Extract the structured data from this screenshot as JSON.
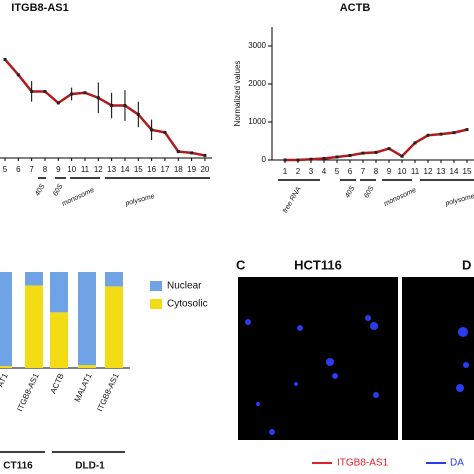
{
  "chart_data": [
    {
      "type": "line",
      "title": "ITGB8-AS1",
      "categories": [
        "5",
        "6",
        "7",
        "8",
        "9",
        "10",
        "11",
        "12",
        "13",
        "14",
        "15",
        "16",
        "17",
        "18",
        "19",
        "20"
      ],
      "values": [
        77,
        65,
        52,
        52,
        43,
        50,
        51,
        47,
        41,
        41,
        34,
        22,
        20,
        5,
        4,
        2
      ],
      "errors": [
        0,
        0,
        8,
        0,
        0,
        5,
        0,
        12,
        10,
        12,
        10,
        8,
        0,
        0,
        0,
        0
      ],
      "color": "#b01c1c",
      "ylim": [
        0,
        100
      ],
      "annotations": [
        "40S",
        "60S",
        "monosome",
        "polysome"
      ]
    },
    {
      "type": "line",
      "title": "ACTB",
      "y_label": "Normalized values",
      "categories": [
        "1",
        "2",
        "3",
        "4",
        "5",
        "6",
        "7",
        "8",
        "9",
        "10",
        "11",
        "12",
        "13",
        "14",
        "15"
      ],
      "values": [
        0,
        0,
        20,
        40,
        80,
        120,
        180,
        200,
        300,
        100,
        450,
        650,
        680,
        720,
        800
      ],
      "errors": [
        0,
        0,
        0,
        0,
        0,
        0,
        0,
        0,
        0,
        0,
        0,
        0,
        0,
        0,
        0
      ],
      "color": "#b01c1c",
      "ylim": [
        0,
        3500
      ],
      "yticks": [
        0,
        1000,
        2000,
        3000
      ],
      "annotations": [
        "free RNA",
        "40S",
        "60S",
        "monosome",
        "polysome"
      ]
    },
    {
      "type": "stacked_bar",
      "categories": [
        "AT1",
        "ITGB8-AS1",
        "ACTB",
        "MALAT1",
        "ITGB8-AS1"
      ],
      "groups": [
        "CT116",
        "DLD-1"
      ],
      "series": [
        {
          "name": "Nuclear",
          "color": "#6fa3e6",
          "values": [
            98,
            14,
            42,
            97,
            15
          ]
        },
        {
          "name": "Cytosolic",
          "color": "#f2dc16",
          "values": [
            2,
            86,
            58,
            3,
            85
          ]
        }
      ],
      "ylim": [
        0,
        100
      ]
    }
  ],
  "panel": {
    "label": "C",
    "title": "HCT116",
    "label2": "D",
    "legend": [
      "ITGB8-AS1",
      "DA"
    ]
  }
}
